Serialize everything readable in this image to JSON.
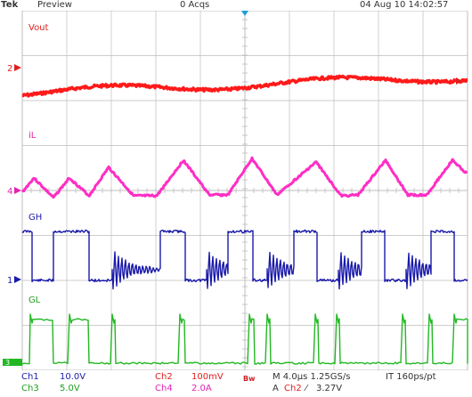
{
  "header": {
    "brand": "Tek",
    "mode": "Preview",
    "acquisitions": "0 Acqs",
    "datetime": "04 Aug 10 14:02:57"
  },
  "colors": {
    "background": "#ffffff",
    "grid": "#bdbdbd",
    "ch1": "#1a1aaa",
    "ch2": "#ff1a1a",
    "ch3": "#22b822",
    "ch4": "#ff2ec4",
    "trigger_marker": "#1aa0d8"
  },
  "traces": [
    {
      "id": "ch2",
      "label": "Vout",
      "marker": "2",
      "description": "red output voltage ripple"
    },
    {
      "id": "ch4",
      "label": "iL",
      "marker": "4",
      "description": "magenta inductor current triangle"
    },
    {
      "id": "ch1",
      "label": "GH",
      "marker": "1",
      "description": "blue high-side gate"
    },
    {
      "id": "ch3",
      "label": "GL",
      "marker": "3",
      "description": "green low-side gate"
    }
  ],
  "settings": {
    "ch1": {
      "name": "Ch1",
      "scale": "10.0V"
    },
    "ch2": {
      "name": "Ch2",
      "scale": "100mV"
    },
    "ch3": {
      "name": "Ch3",
      "scale": "5.0V"
    },
    "ch4": {
      "name": "Ch4",
      "scale": "2.0A"
    },
    "bandwidth": "Bw",
    "timebase": "M 4.0µs 1.25GS/s",
    "sampling": "IT 160ps/pt",
    "trigger_mode": "A",
    "trigger_source": "Ch2",
    "trigger_slope": "⁄",
    "trigger_level": "3.27V"
  },
  "icons": {
    "trigger_position": "trigger-position-icon",
    "trigger_level": "trigger-level-arrow-icon"
  }
}
